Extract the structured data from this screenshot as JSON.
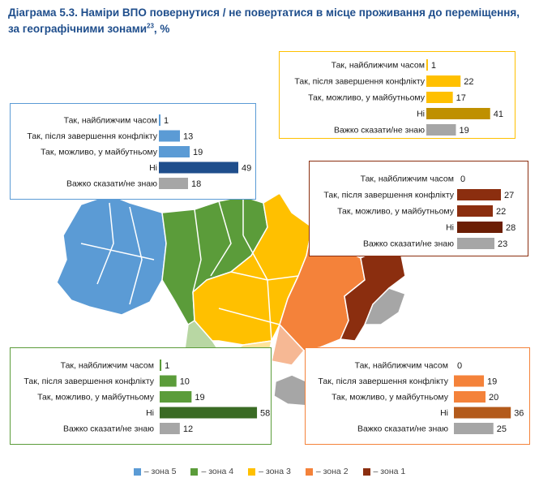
{
  "title": "Діаграма 5.3. Наміри ВПО повернутися / не повертатися в місце проживання до переміщення,",
  "title_line2": "за географічними зонами",
  "title_footnote": "23",
  "title_suffix": ", %",
  "colors": {
    "zone5": "#5b9bd5",
    "zone4": "#5b9c3a",
    "zone3": "#ffc000",
    "zone2": "#f4823a",
    "zone1": "#8b2e0f",
    "grey": "#a6a6a6",
    "map_light_green": "#b8d7a3",
    "map_light_yellow": "#ffe49a",
    "map_light_orange": "#f6b894",
    "map_grey": "#a6a6a6"
  },
  "legend": [
    {
      "label": "– зона 5",
      "color": "#5b9bd5"
    },
    {
      "label": "– зона 4",
      "color": "#5b9c3a"
    },
    {
      "label": "– зона 3",
      "color": "#ffc000"
    },
    {
      "label": "– зона 2",
      "color": "#f4823a"
    },
    {
      "label": "– зона 1",
      "color": "#8b2e0f"
    }
  ],
  "chart_data": [
    {
      "type": "bar",
      "zone": "зона 5",
      "categories": [
        "Так, найближчим часом",
        "Так, після завершення конфлікту",
        "Так, можливо, у майбутньому",
        "Ні",
        "Важко сказати/не знаю"
      ],
      "values": [
        1,
        13,
        19,
        49,
        18
      ],
      "bar_colors": [
        "#5b9bd5",
        "#5b9bd5",
        "#5b9bd5",
        "#1f4e8c",
        "#a6a6a6"
      ],
      "border_color": "#5b9bd5"
    },
    {
      "type": "bar",
      "zone": "зона 3",
      "categories": [
        "Так, найближчим часом",
        "Так, після завершення конфлікту",
        "Так, можливо, у майбутньому",
        "Ні",
        "Важко сказати/не знаю"
      ],
      "values": [
        1,
        22,
        17,
        41,
        19
      ],
      "bar_colors": [
        "#ffc000",
        "#ffc000",
        "#ffc000",
        "#bf9000",
        "#a6a6a6"
      ],
      "border_color": "#ffc000"
    },
    {
      "type": "bar",
      "zone": "зона 1",
      "categories": [
        "Так, найближчим часом",
        "Так, після завершення конфлікту",
        "Так, можливо, у майбутньому",
        "Ні",
        "Важко сказати/не знаю"
      ],
      "values": [
        0,
        27,
        22,
        28,
        23
      ],
      "bar_colors": [
        "#8b2e0f",
        "#8b2e0f",
        "#8b2e0f",
        "#6b1e05",
        "#a6a6a6"
      ],
      "border_color": "#8b2e0f"
    },
    {
      "type": "bar",
      "zone": "зона 4",
      "categories": [
        "Так, найближчим часом",
        "Так, після завершення конфлікту",
        "Так, можливо, у майбутньому",
        "Ні",
        "Важко сказати/не знаю"
      ],
      "values": [
        1,
        10,
        19,
        58,
        12
      ],
      "bar_colors": [
        "#5b9c3a",
        "#5b9c3a",
        "#5b9c3a",
        "#3a6b24",
        "#a6a6a6"
      ],
      "border_color": "#5b9c3a"
    },
    {
      "type": "bar",
      "zone": "зона 2",
      "categories": [
        "Так, найближчим часом",
        "Так, після завершення конфлікту",
        "Так, можливо, у майбутньому",
        "Ні",
        "Важко сказати/не знаю"
      ],
      "values": [
        0,
        19,
        20,
        36,
        25
      ],
      "bar_colors": [
        "#f4823a",
        "#f4823a",
        "#f4823a",
        "#b35a1b",
        "#a6a6a6"
      ],
      "border_color": "#f4823a"
    }
  ]
}
